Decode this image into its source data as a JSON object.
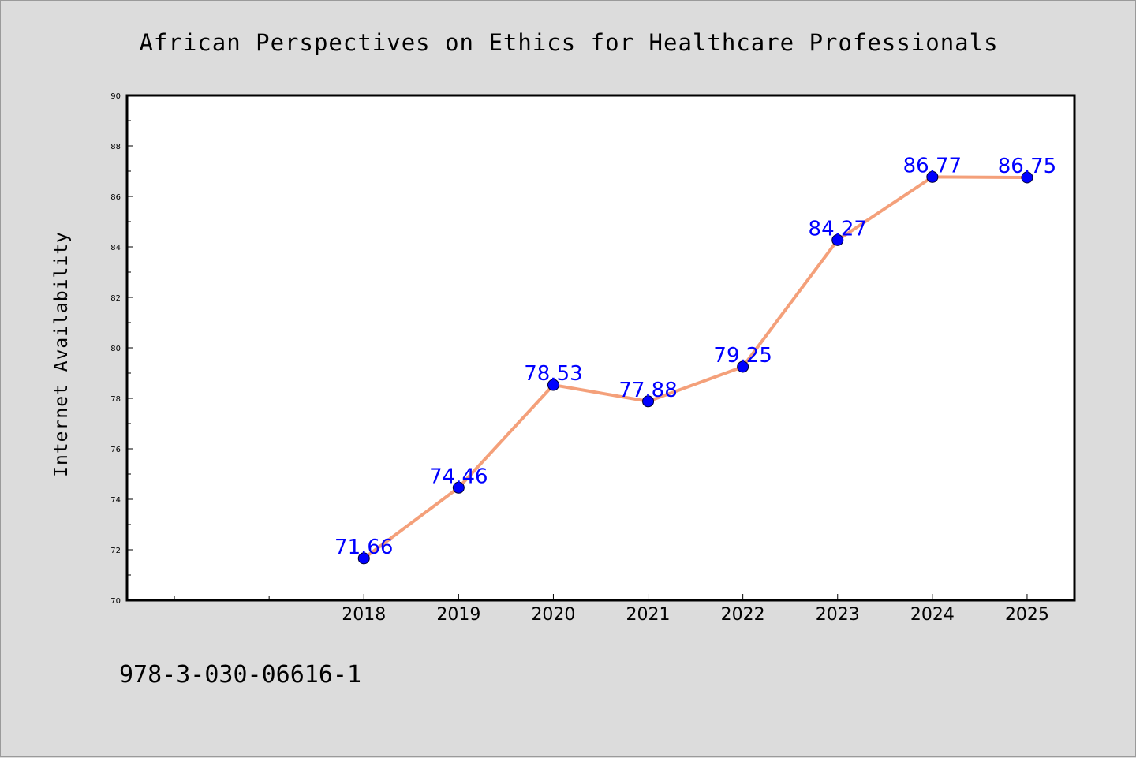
{
  "chart_data": {
    "type": "line",
    "title": "African Perspectives on Ethics for Healthcare Professionals",
    "xlabel": "",
    "ylabel": "Internet Availability",
    "x": [
      "2018",
      "2019",
      "2020",
      "2021",
      "2022",
      "2023",
      "2024",
      "2025"
    ],
    "series": [
      {
        "values": [
          71.66,
          74.46,
          78.53,
          77.88,
          79.25,
          84.27,
          86.77,
          86.75
        ],
        "line_color": "#f4a07a",
        "marker_color": "#0000ff"
      }
    ],
    "data_labels": [
      "71.66",
      "74.46",
      "78.53",
      "77.88",
      "79.25",
      "84.27",
      "86.77",
      "86.75"
    ],
    "ylim": [
      70,
      90
    ],
    "yticks": [
      "70",
      "72",
      "74",
      "76",
      "78",
      "80",
      "82",
      "84",
      "86",
      "88",
      "90"
    ],
    "grid": false,
    "legend": "none"
  },
  "footer": {
    "isbn": "978-3-030-06616-1"
  }
}
